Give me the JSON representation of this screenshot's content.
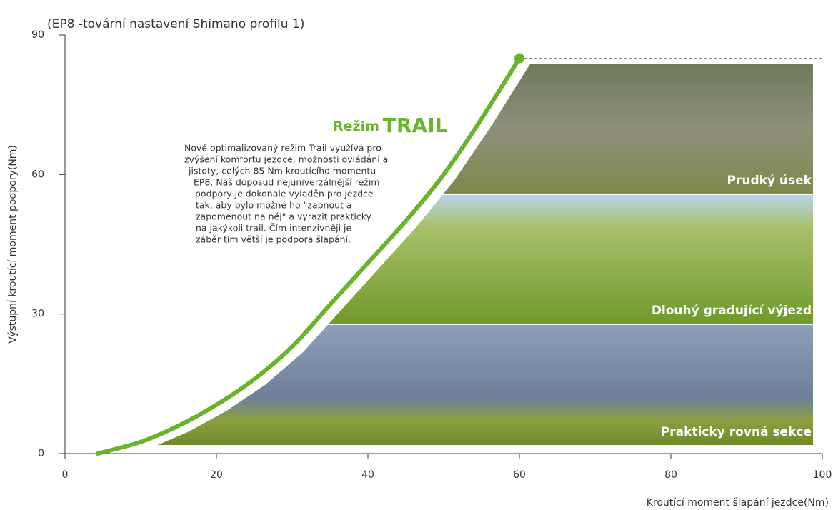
{
  "chart_data": {
    "type": "line",
    "title": "(EP8 -tovární nastavení Shimano profilu 1)",
    "y_label": "Výstupní kroutící moment podpory(Nm)",
    "x_label": "Kroutící moment šlapání jezdce(Nm)",
    "x": [
      4.3,
      10,
      15,
      20,
      25,
      30,
      35,
      40,
      45,
      50,
      55,
      60
    ],
    "series": [
      {
        "name": "Režim TRAIL",
        "color": "#6ab42d",
        "values": [
          0,
          2.5,
          6,
          10.5,
          16,
          23,
          32,
          41,
          50,
          60,
          72,
          85
        ]
      }
    ],
    "xlim": [
      0,
      100
    ],
    "xticks": [
      0,
      20,
      40,
      60,
      80,
      100
    ],
    "ylim": [
      0,
      90
    ],
    "yticks": [
      0,
      30,
      60,
      90
    ],
    "annotation": {
      "title": [
        "Režim",
        "TRAIL"
      ],
      "lines": [
        "Nově optimalizovaný režim Trail využívá pro",
        "zvýšení komfortu jezdce, možností ovládání a",
        "jistoty, celých 85 Nm kroutícího momentu",
        "EP8. Náš doposud nejuniverzálnější režim",
        "podpory je dokonale vyladěn pro jezdce",
        "tak, aby bylo možné ho \"zapnout a",
        "zapomenout na něj\" a vyrazit prakticky",
        "na jakýkoli trail. Čím intenzivněji je",
        "záběr tím větší je podpora šlapání."
      ]
    },
    "photos": [
      "Prudký úsek",
      "Dlouhý gradující výjezd",
      "Prakticky rovná sekce"
    ]
  }
}
